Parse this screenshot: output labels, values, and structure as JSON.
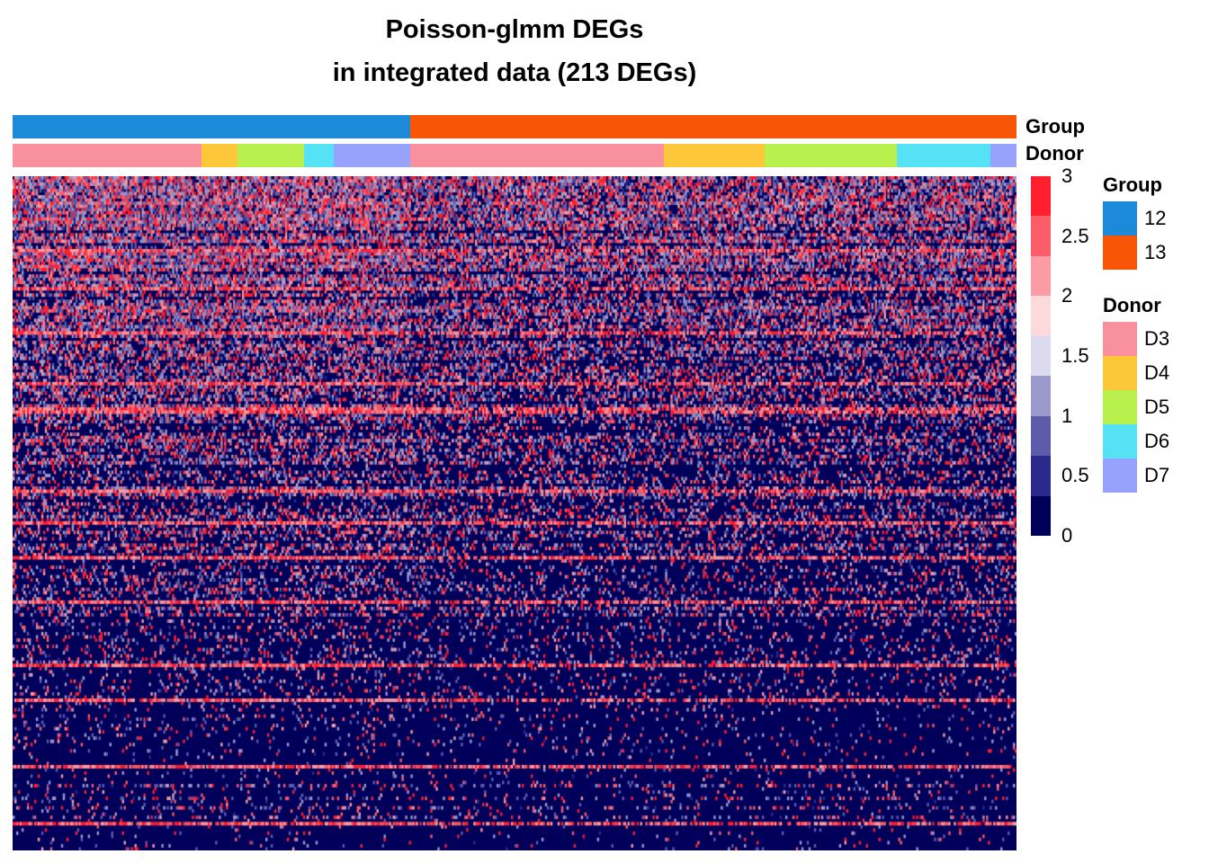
{
  "title_line1": "Poisson-glmm DEGs",
  "title_line2": "in integrated data (213 DEGs)",
  "chart_data": {
    "type": "heatmap",
    "title": "Poisson-glmm DEGs in integrated data (213 DEGs)",
    "rows": 213,
    "value_range": [
      0,
      3
    ],
    "color_scale": {
      "breaks": [
        0,
        0.5,
        1,
        1.5,
        2,
        2.5,
        3
      ],
      "colors": [
        "#00005b",
        "#2b2a8c",
        "#5e5bab",
        "#9c99cc",
        "#dcdaee",
        "#fcd9dc",
        "#fb9ca4",
        "#fb5c67",
        "#ff1f2f"
      ],
      "tick_labels": [
        "3",
        "2.5",
        "2",
        "1.5",
        "1",
        "0.5",
        "0"
      ]
    },
    "annotations": {
      "Group": {
        "label": "Group",
        "segments": [
          {
            "name": "12",
            "fraction": 0.396
          },
          {
            "name": "13",
            "fraction": 0.604
          }
        ]
      },
      "Donor": {
        "label": "Donor",
        "segments": [
          {
            "name": "D3",
            "group": "12",
            "fraction": 0.188
          },
          {
            "name": "D4",
            "group": "12",
            "fraction": 0.036
          },
          {
            "name": "D5",
            "group": "12",
            "fraction": 0.066
          },
          {
            "name": "D6",
            "group": "12",
            "fraction": 0.03
          },
          {
            "name": "D7",
            "group": "12",
            "fraction": 0.076
          },
          {
            "name": "D3",
            "group": "13",
            "fraction": 0.253
          },
          {
            "name": "D4",
            "group": "13",
            "fraction": 0.1
          },
          {
            "name": "D5",
            "group": "13",
            "fraction": 0.132
          },
          {
            "name": "D6",
            "group": "13",
            "fraction": 0.093
          },
          {
            "name": "D7",
            "group": "13",
            "fraction": 0.026
          }
        ]
      }
    }
  },
  "legend": {
    "scale_labels": [
      "3",
      "2.5",
      "2",
      "1.5",
      "1",
      "0.5",
      "0"
    ],
    "group_title": "Group",
    "group_items": [
      {
        "label": "12",
        "color": "#1d8ad9"
      },
      {
        "label": "13",
        "color": "#f95506"
      }
    ],
    "donor_title": "Donor",
    "donor_items": [
      {
        "label": "D3",
        "color": "#f9909e"
      },
      {
        "label": "D4",
        "color": "#fcc83a"
      },
      {
        "label": "D5",
        "color": "#b8f04e"
      },
      {
        "label": "D6",
        "color": "#55e2f4"
      },
      {
        "label": "D7",
        "color": "#96a2fb"
      }
    ]
  }
}
